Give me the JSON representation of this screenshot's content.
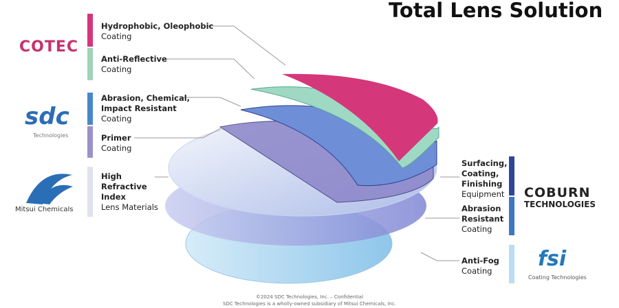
{
  "header": {
    "title": "Total Lens Solution"
  },
  "left_layers": [
    {
      "title_lines": [
        "Hydrophobic, Oleophobic"
      ],
      "subtitle": "Coating"
    },
    {
      "title_lines": [
        "Anti-Reflective"
      ],
      "subtitle": "Coating"
    },
    {
      "title_lines": [
        "Abrasion, Chemical,",
        "Impact Resistant"
      ],
      "subtitle": "Coating"
    },
    {
      "title_lines": [
        "Primer"
      ],
      "subtitle": "Coating"
    },
    {
      "title_lines": [
        "High",
        "Refractive",
        "Index"
      ],
      "subtitle": "Lens Materials"
    }
  ],
  "left_logos": [
    {
      "name": "COTEC"
    },
    {
      "name": "sdc",
      "tagline": "Technologies"
    },
    {
      "name": "Mitsui Chemicals"
    }
  ],
  "right_layers": [
    {
      "title_lines": [
        "Surfacing,",
        "Coating,",
        "Finishing"
      ],
      "subtitle": "Equipment"
    },
    {
      "title_lines": [
        "Abrasion",
        "Resistant"
      ],
      "subtitle": "Coating"
    },
    {
      "title_lines": [
        "Anti-Fog"
      ],
      "subtitle": "Coating"
    }
  ],
  "right_logos": [
    {
      "name": "COBURN",
      "tagline": "TECHNOLOGIES"
    },
    {
      "name": "fsi",
      "tagline": "Coating Technologies"
    }
  ],
  "footer": {
    "lines": [
      "©2024 SDC Technologies, Inc. – Confidential",
      "SDC Technologies is a wholly-owned subsidiary of Mitsui Chemicals, Inc."
    ]
  }
}
